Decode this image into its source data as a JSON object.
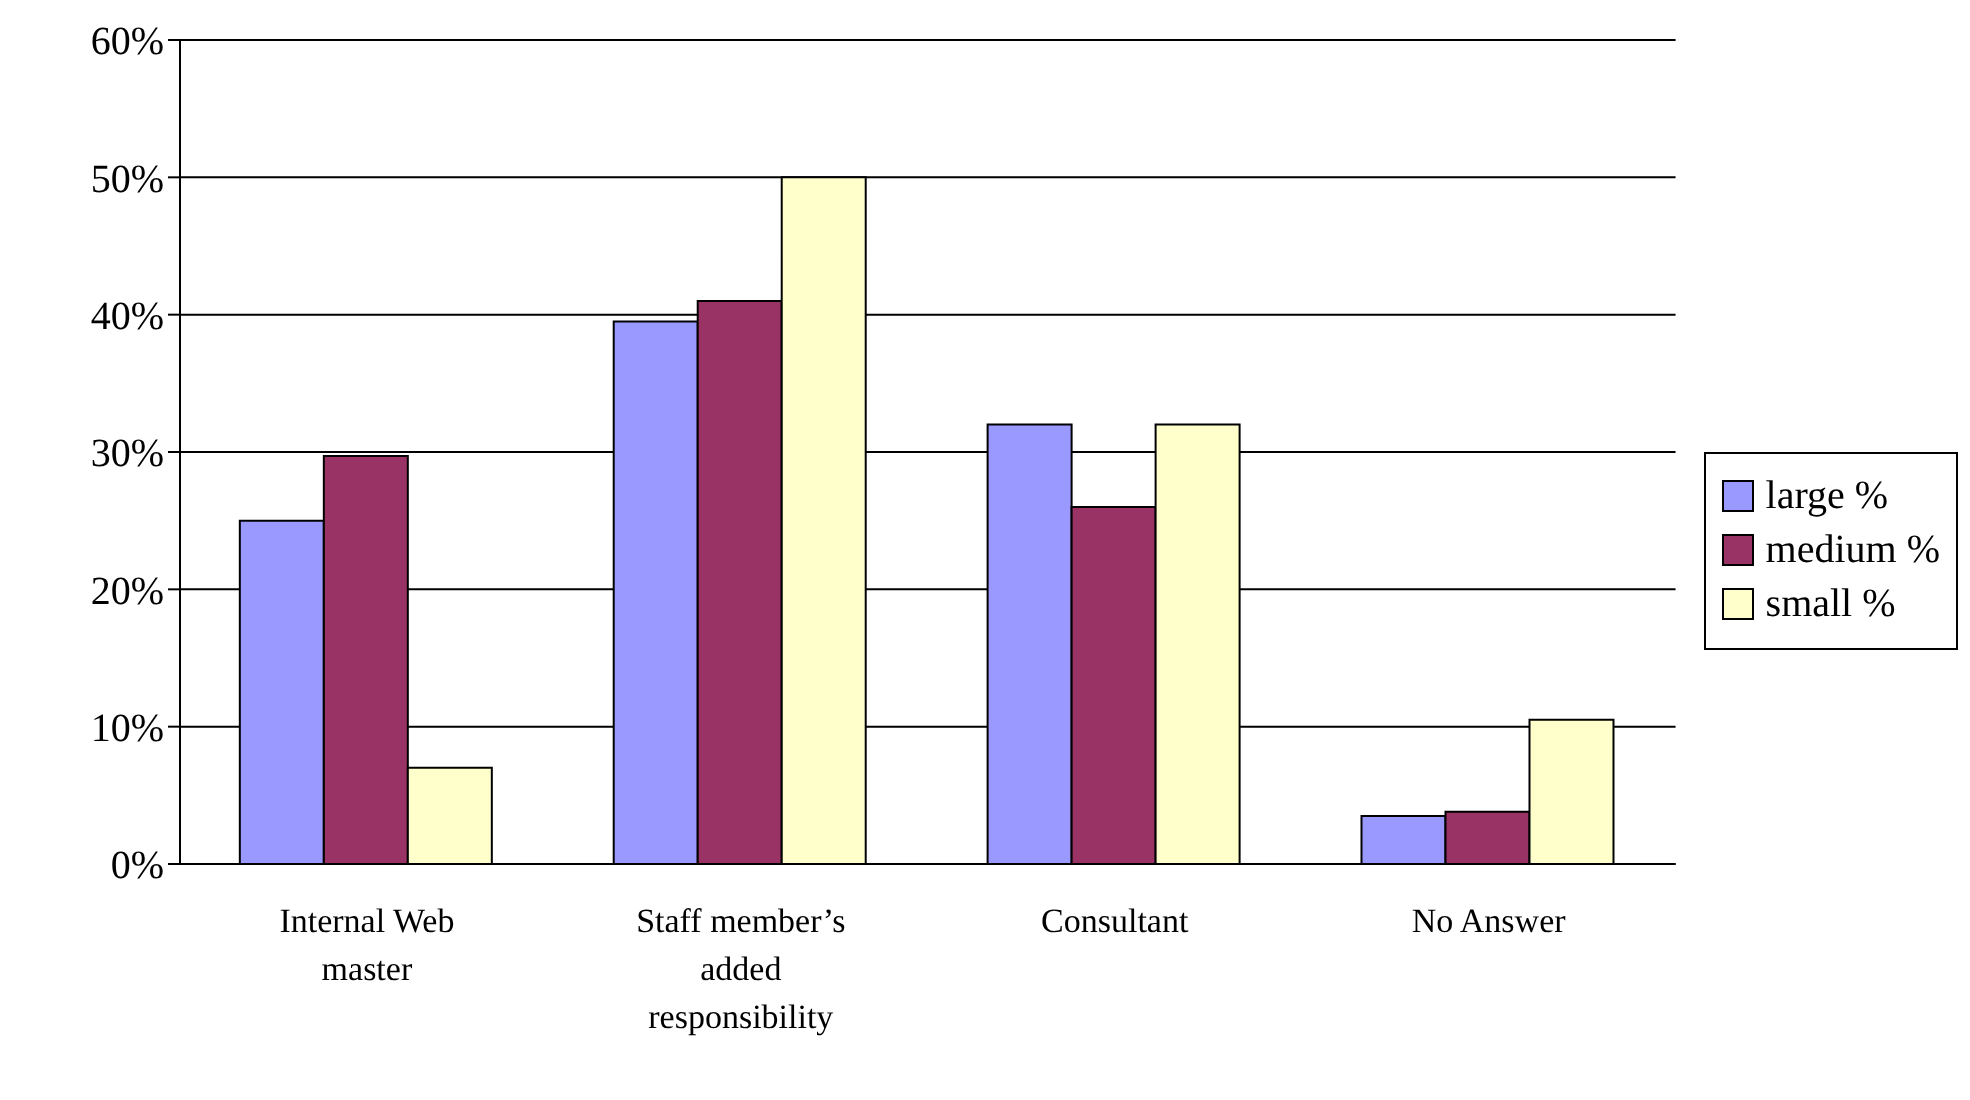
{
  "chart_data": {
    "type": "bar",
    "categories": [
      "Internal Web master",
      "Staff member’s added responsibility",
      "Consultant",
      "No Answer"
    ],
    "series": [
      {
        "name": "large %",
        "color": "#9999ff",
        "values": [
          25,
          39.5,
          32,
          3.5
        ]
      },
      {
        "name": "medium %",
        "color": "#993366",
        "values": [
          29.7,
          41,
          26,
          3.8
        ]
      },
      {
        "name": "small %",
        "color": "#ffffcc",
        "values": [
          7,
          50,
          32,
          10.5
        ]
      }
    ],
    "ylim": [
      0,
      60
    ],
    "yticks": [
      {
        "value": 0,
        "label": "0%"
      },
      {
        "value": 10,
        "label": "10%"
      },
      {
        "value": 20,
        "label": "20%"
      },
      {
        "value": 30,
        "label": "30%"
      },
      {
        "value": 40,
        "label": "40%"
      },
      {
        "value": 50,
        "label": "50%"
      },
      {
        "value": 60,
        "label": "60%"
      }
    ],
    "grid": "y",
    "legend": "right"
  }
}
